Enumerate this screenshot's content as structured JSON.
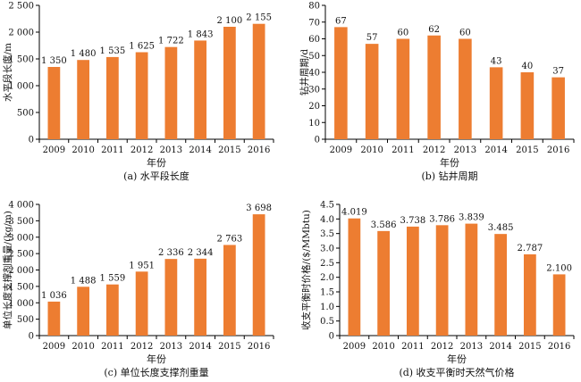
{
  "bar_color": "#ed7d31",
  "chart_data": [
    {
      "type": "bar",
      "title": "(a) 水平段长度",
      "xlabel": "年份",
      "ylabel": "水平段长度/m",
      "categories": [
        "2009",
        "2010",
        "2011",
        "2012",
        "2013",
        "2014",
        "2015",
        "2016"
      ],
      "values": [
        1350,
        1480,
        1535,
        1625,
        1722,
        1843,
        2100,
        2155
      ],
      "data_labels": [
        "1 350",
        "1 480",
        "1 535",
        "1 625",
        "1 722",
        "1 843",
        "2 100",
        "2 155"
      ],
      "ylim": [
        0,
        2500
      ],
      "yticks": [
        0,
        500,
        1000,
        1500,
        2000,
        2500
      ],
      "ytick_labels": [
        "0",
        "500",
        "1 000",
        "1 500",
        "2 000",
        "2 500"
      ],
      "grid": false,
      "legend": "none"
    },
    {
      "type": "bar",
      "title": "(b) 钻井周期",
      "xlabel": "年份",
      "ylabel": "钻井周期/d",
      "categories": [
        "2009",
        "2010",
        "2011",
        "2012",
        "2013",
        "2014",
        "2015",
        "2016"
      ],
      "values": [
        67,
        57,
        60,
        62,
        60,
        43,
        40,
        37
      ],
      "data_labels": [
        "67",
        "57",
        "60",
        "62",
        "60",
        "43",
        "40",
        "37"
      ],
      "ylim": [
        0,
        80
      ],
      "yticks": [
        0,
        10,
        20,
        30,
        40,
        50,
        60,
        70,
        80
      ],
      "ytick_labels": [
        "0",
        "10",
        "20",
        "30",
        "40",
        "50",
        "60",
        "70",
        "80"
      ],
      "grid": false,
      "legend": "none"
    },
    {
      "type": "bar",
      "title": "(c) 单位长度支撑剂重量",
      "xlabel": "年份",
      "ylabel": "单位长度支撑剂重量/(kg/m)",
      "categories": [
        "2009",
        "2010",
        "2011",
        "2012",
        "2013",
        "2014",
        "2015",
        "2016"
      ],
      "values": [
        1036,
        1488,
        1559,
        1951,
        2336,
        2344,
        2763,
        3698
      ],
      "data_labels": [
        "1 036",
        "1 488",
        "1 559",
        "1 951",
        "2 336",
        "2 344",
        "2 763",
        "3 698"
      ],
      "ylim": [
        0,
        4000
      ],
      "yticks": [
        0,
        500,
        1000,
        1500,
        2000,
        2500,
        3000,
        3500,
        4000
      ],
      "ytick_labels": [
        "0",
        "500",
        "1 000",
        "1 500",
        "2 000",
        "2 500",
        "3 000",
        "3 500",
        "4 000"
      ],
      "grid": false,
      "legend": "none"
    },
    {
      "type": "bar",
      "title": "(d) 收支平衡时天然气价格",
      "xlabel": "年份",
      "ylabel": "收支平衡时价格/($/MMbtu)",
      "categories": [
        "2009",
        "2010",
        "2011",
        "2012",
        "2013",
        "2014",
        "2015",
        "2016"
      ],
      "values": [
        4.019,
        3.586,
        3.738,
        3.786,
        3.839,
        3.485,
        2.787,
        2.1
      ],
      "data_labels": [
        "4.019",
        "3.586",
        "3.738",
        "3.786",
        "3.839",
        "3.485",
        "2.787",
        "2.100"
      ],
      "ylim": [
        0,
        4.5
      ],
      "yticks": [
        0,
        0.5,
        1,
        1.5,
        2,
        2.5,
        3,
        3.5,
        4,
        4.5
      ],
      "ytick_labels": [
        "0",
        "0.5",
        "1.0",
        "1.5",
        "2.0",
        "2.5",
        "3.0",
        "3.5",
        "4.0",
        "4.5"
      ],
      "grid": false,
      "legend": "none"
    }
  ]
}
